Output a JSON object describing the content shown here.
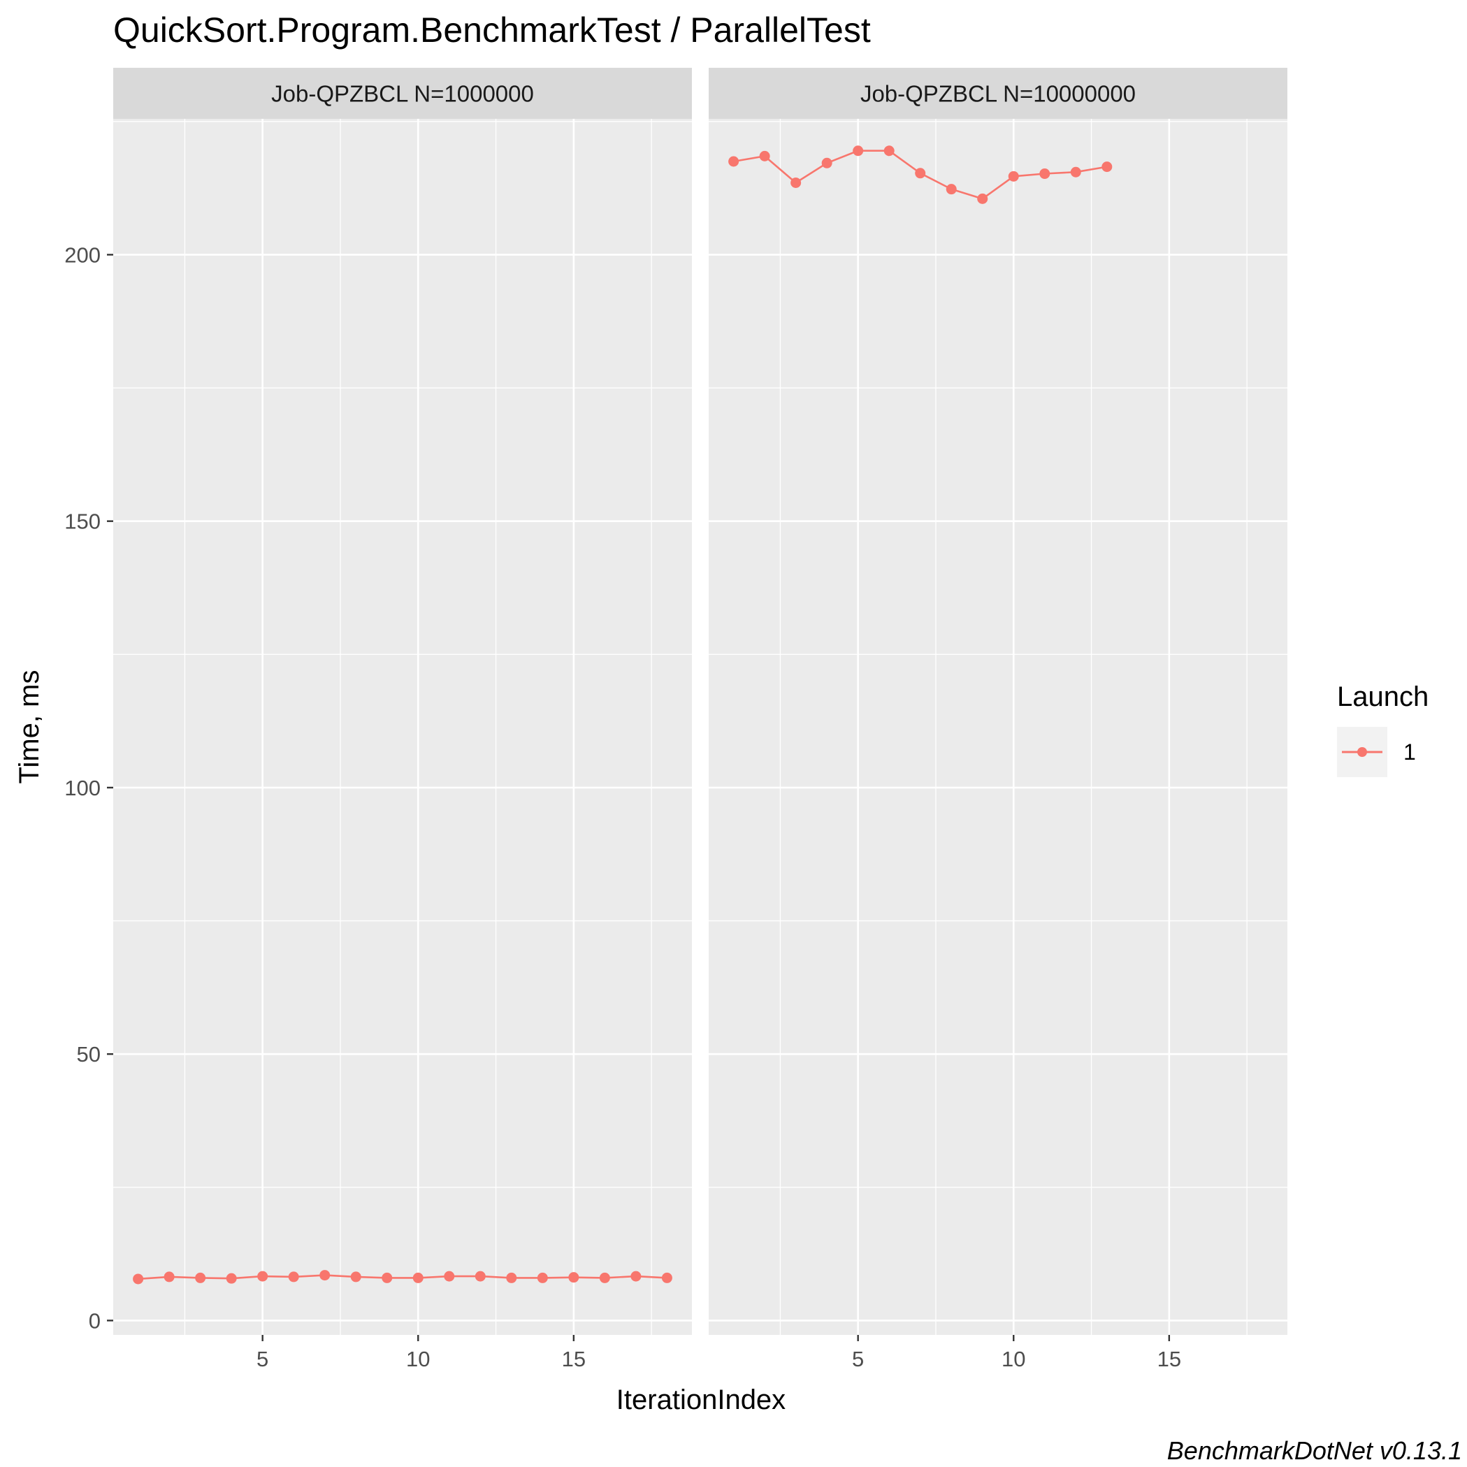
{
  "chart_data": {
    "type": "line",
    "title": "QuickSort.Program.BenchmarkTest / ParallelTest",
    "xlabel": "IterationIndex",
    "ylabel": "Time, ms",
    "caption": "BenchmarkDotNet v0.13.1",
    "xlim": [
      0.2,
      18.8
    ],
    "ylim": [
      -2.7,
      225.5
    ],
    "x_ticks": [
      5,
      10,
      15
    ],
    "y_ticks": [
      0,
      50,
      100,
      150,
      200
    ],
    "grid": true,
    "legend": {
      "title": "Launch",
      "position": "right",
      "entries": [
        "1"
      ]
    },
    "series_color": "#F8766D",
    "facets": [
      {
        "label": "Job-QPZBCL N=1000000",
        "series": [
          {
            "name": "1",
            "x": [
              1,
              2,
              3,
              4,
              5,
              6,
              7,
              8,
              9,
              10,
              11,
              12,
              13,
              14,
              15,
              16,
              17,
              18
            ],
            "y": [
              7.8,
              8.2,
              8.0,
              7.9,
              8.3,
              8.2,
              8.5,
              8.2,
              8.0,
              8.0,
              8.3,
              8.3,
              8.0,
              8.0,
              8.1,
              8.0,
              8.3,
              8.0
            ]
          }
        ]
      },
      {
        "label": "Job-QPZBCL N=10000000",
        "series": [
          {
            "name": "1",
            "x": [
              1,
              2,
              3,
              4,
              5,
              6,
              7,
              8,
              9,
              10,
              11,
              12,
              13
            ],
            "y": [
              217.5,
              218.5,
              213.5,
              217.2,
              219.5,
              219.5,
              215.3,
              212.3,
              210.5,
              214.7,
              215.2,
              215.5,
              216.5
            ]
          }
        ]
      }
    ]
  }
}
